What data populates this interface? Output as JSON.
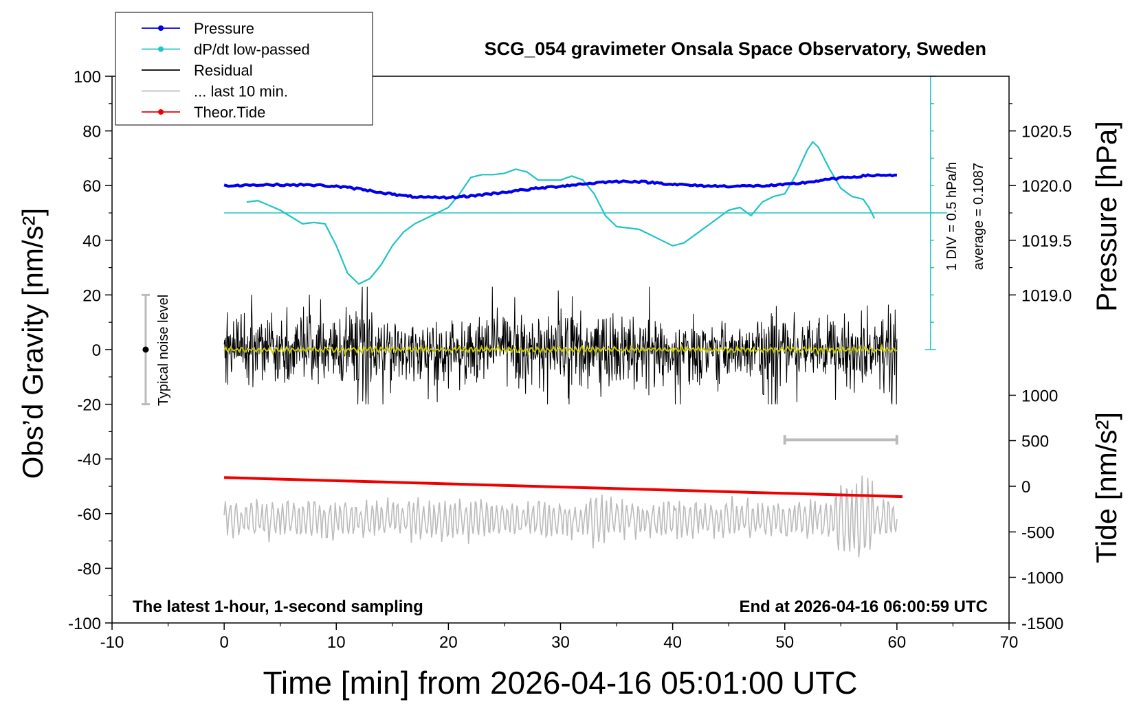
{
  "chart_data": {
    "type": "line",
    "title": "SCG_054 gravimeter Onsala Space Observatory, Sweden",
    "xlabel": "Time [min] from 2026-04-16 05:01:00 UTC",
    "ylabel_left": "Obs’d Gravity [nm/s²]",
    "ylabel_right_top": "Pressure [hPa]",
    "ylabel_right_bottom": "Tide [nm/s²]",
    "xlim": [
      -10,
      70
    ],
    "ylim": [
      -100,
      100
    ],
    "x_ticks": [
      "-10",
      "0",
      "10",
      "20",
      "30",
      "40",
      "50",
      "60",
      "70"
    ],
    "y_ticks_left": [
      "100",
      "80",
      "60",
      "40",
      "20",
      "0",
      "-20",
      "-40",
      "-60",
      "-80",
      "-100"
    ],
    "pressure_axis": {
      "ticks": [
        "1020.5",
        "1020.0",
        "1019.5",
        "1019.0"
      ],
      "tick_gravity_positions": [
        80,
        60,
        40,
        20
      ],
      "range_hpa_at_gravity_60_and_80": [
        1020.0,
        1020.5
      ]
    },
    "tide_axis": {
      "ticks": [
        "1000",
        "500",
        "0",
        "-500",
        "-1000",
        "-1500"
      ],
      "tick_gravity_positions": [
        -16.7,
        -33.3,
        -50,
        -66.7,
        -83.3,
        -100
      ]
    },
    "legend": {
      "placement": "top-left",
      "entries": [
        {
          "label": "Pressure",
          "color": "#0000ee",
          "marker": "dot"
        },
        {
          "label": "dP/dt low-passed",
          "color": "#20c4c4",
          "marker": "dot"
        },
        {
          "label": "Residual",
          "color": "#000000",
          "marker": "none"
        },
        {
          "label": "... last 10 min.",
          "color": "#bbbbbb",
          "marker": "none"
        },
        {
          "label": "Theor.Tide",
          "color": "#ee0000",
          "marker": "dot"
        }
      ]
    },
    "annotations": {
      "noise_label": "Typical noise level",
      "noise_bar": {
        "x": -7,
        "y_low": -20,
        "y_high": 20
      },
      "dpdt_scale": "1 DIV = 0.5 hPa/h",
      "dpdt_average": "average = 0.1087",
      "dpdt_baseline_gravity": 50,
      "dpdt_axis_x": 63,
      "dpdt_axis_range": [
        0,
        100
      ],
      "last10_bar": {
        "x_start": 50,
        "x_end": 60,
        "y": -33
      },
      "bottom_left": "The latest 1-hour, 1-second sampling",
      "bottom_right": "End at 2026-04-16 06:00:59 UTC"
    },
    "series": [
      {
        "name": "Pressure",
        "color": "#0000ee",
        "x": [
          0,
          2,
          5,
          8,
          10,
          12,
          14,
          16,
          18,
          20,
          22,
          24,
          26,
          28,
          30,
          32,
          34,
          36,
          38,
          40,
          42,
          44,
          46,
          48,
          50,
          52,
          54,
          56,
          58,
          60
        ],
        "y": [
          60.0,
          60.2,
          60.3,
          60.2,
          59.7,
          58.8,
          57.5,
          56.2,
          55.6,
          55.6,
          56.2,
          57.1,
          58.1,
          59.0,
          59.8,
          60.6,
          61.3,
          61.6,
          61.2,
          60.5,
          60.0,
          59.8,
          59.8,
          59.9,
          60.3,
          61.2,
          62.3,
          63.2,
          63.8,
          63.8
        ]
      },
      {
        "name": "dP/dt low-passed",
        "color": "#20c4c4",
        "x": [
          2,
          3,
          5,
          7,
          8,
          9,
          10,
          11,
          12,
          13,
          14,
          15,
          16,
          17,
          18,
          20,
          21,
          22,
          23,
          24,
          25,
          26,
          27,
          28,
          29,
          30,
          31,
          32,
          33,
          34,
          35,
          36,
          37,
          38,
          39,
          40,
          41,
          42,
          43,
          44,
          45,
          46,
          47,
          48,
          49,
          50,
          51,
          52,
          52.5,
          53,
          54,
          55,
          56,
          57,
          57.5,
          58
        ],
        "y": [
          54,
          54.5,
          51,
          46,
          46.5,
          46,
          38,
          28,
          24,
          26,
          31,
          38,
          43,
          46,
          48,
          52,
          57,
          63,
          64,
          64,
          64.5,
          66,
          65,
          62,
          62,
          62,
          63.5,
          62,
          57,
          49,
          45,
          44.5,
          44,
          42,
          40,
          38,
          39,
          42,
          45,
          48,
          51,
          52,
          49,
          54,
          56,
          57,
          64,
          73,
          76,
          74,
          66,
          59,
          56,
          55,
          52,
          48
        ]
      },
      {
        "name": "Residual",
        "color": "#000000",
        "x_range": [
          0,
          60
        ],
        "y_center": 0,
        "y_typical_amplitude": [
          -15,
          15
        ],
        "y_extremes": [
          -20,
          23
        ]
      },
      {
        "name": "... last 10 min.",
        "color": "#bbbbbb",
        "x_range": [
          0,
          60
        ],
        "y_center": -62,
        "y_typical_amplitude": [
          -70,
          -53
        ],
        "y_extremes": [
          -81,
          -46
        ]
      },
      {
        "name": "Theor.Tide",
        "color": "#ee0000",
        "x": [
          0,
          60.5
        ],
        "y": [
          -46.8,
          -53.8
        ]
      },
      {
        "name": "Residual low-passed",
        "color": "#c8c800",
        "x_range": [
          0,
          60
        ],
        "y_center": 0
      }
    ]
  }
}
